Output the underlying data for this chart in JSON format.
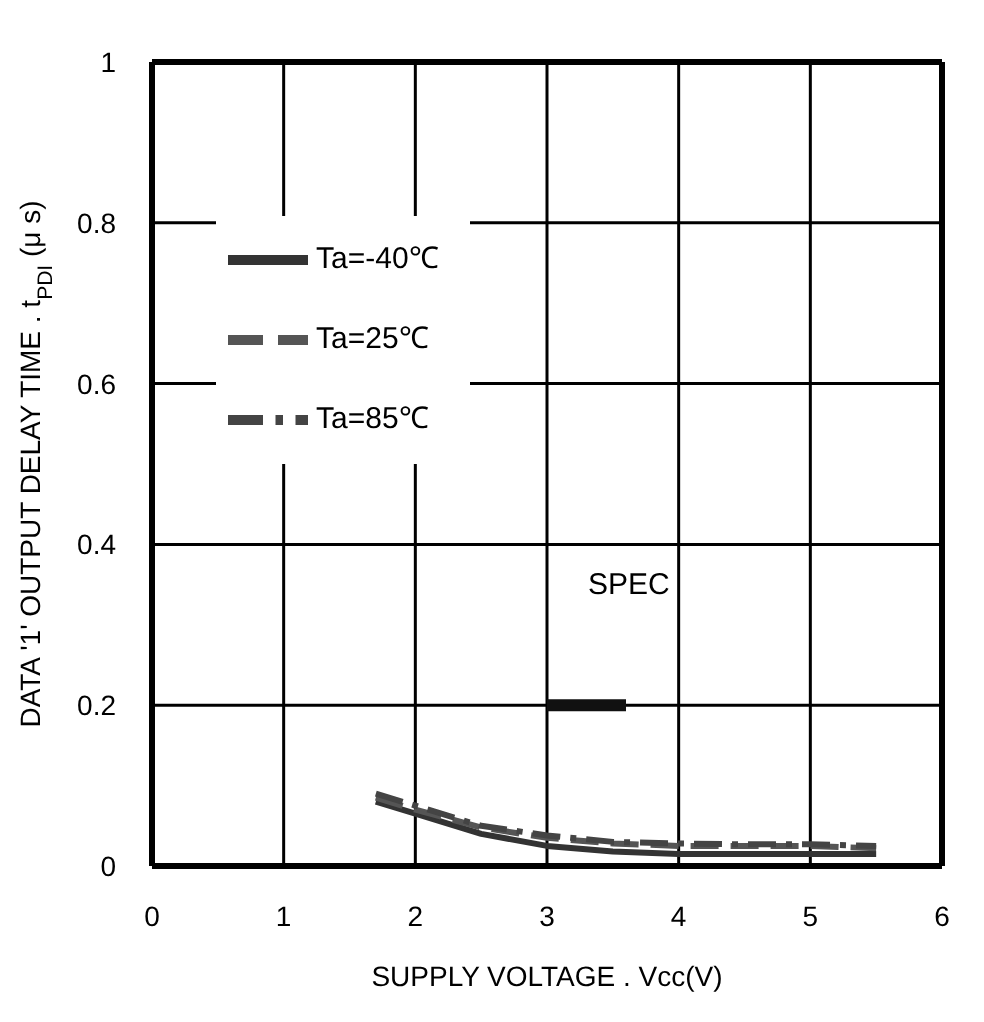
{
  "chart_data": {
    "type": "line",
    "xlabel": "SUPPLY VOLTAGE . Vcc(V)",
    "ylabel": "DATA '1' OUTPUT DELAY TIME . t$_{PDI}$(μ s)",
    "xlim": [
      0,
      6
    ],
    "xticks": [
      0,
      1,
      2,
      3,
      4,
      5,
      6
    ],
    "ylim": [
      0,
      1
    ],
    "yticks": [
      0,
      0.2,
      0.4,
      0.6,
      0.8,
      1
    ],
    "grid": true,
    "legend": "top left",
    "marker": "none",
    "annotations": [
      "SPEC"
    ],
    "series": [
      {
        "name": "Ta=-40℃",
        "color": "#333333",
        "line_style": "solid",
        "x": [
          1.7,
          2,
          2.5,
          3,
          3.5,
          4,
          4.5,
          5,
          5.5
        ],
        "values": [
          0.08,
          0.065,
          0.04,
          0.025,
          0.018,
          0.015,
          0.015,
          0.015,
          0.015
        ]
      },
      {
        "name": "Ta=25℃",
        "color": "#555555",
        "line_style": "dashed",
        "x": [
          1.7,
          2,
          2.5,
          3,
          3.5,
          4,
          4.5,
          5,
          5.5
        ],
        "values": [
          0.085,
          0.07,
          0.048,
          0.035,
          0.028,
          0.025,
          0.025,
          0.025,
          0.022
        ]
      },
      {
        "name": "Ta=85℃",
        "color": "#444444",
        "line_style": "dashdot",
        "x": [
          1.7,
          2,
          2.5,
          3,
          3.5,
          4,
          4.5,
          5,
          5.5
        ],
        "values": [
          0.09,
          0.075,
          0.05,
          0.038,
          0.03,
          0.028,
          0.027,
          0.027,
          0.025
        ]
      },
      {
        "color": "#111111",
        "line_style": "solid",
        "x": [
          3,
          3.6
        ],
        "values": [
          0.2,
          0.2
        ]
      }
    ]
  }
}
